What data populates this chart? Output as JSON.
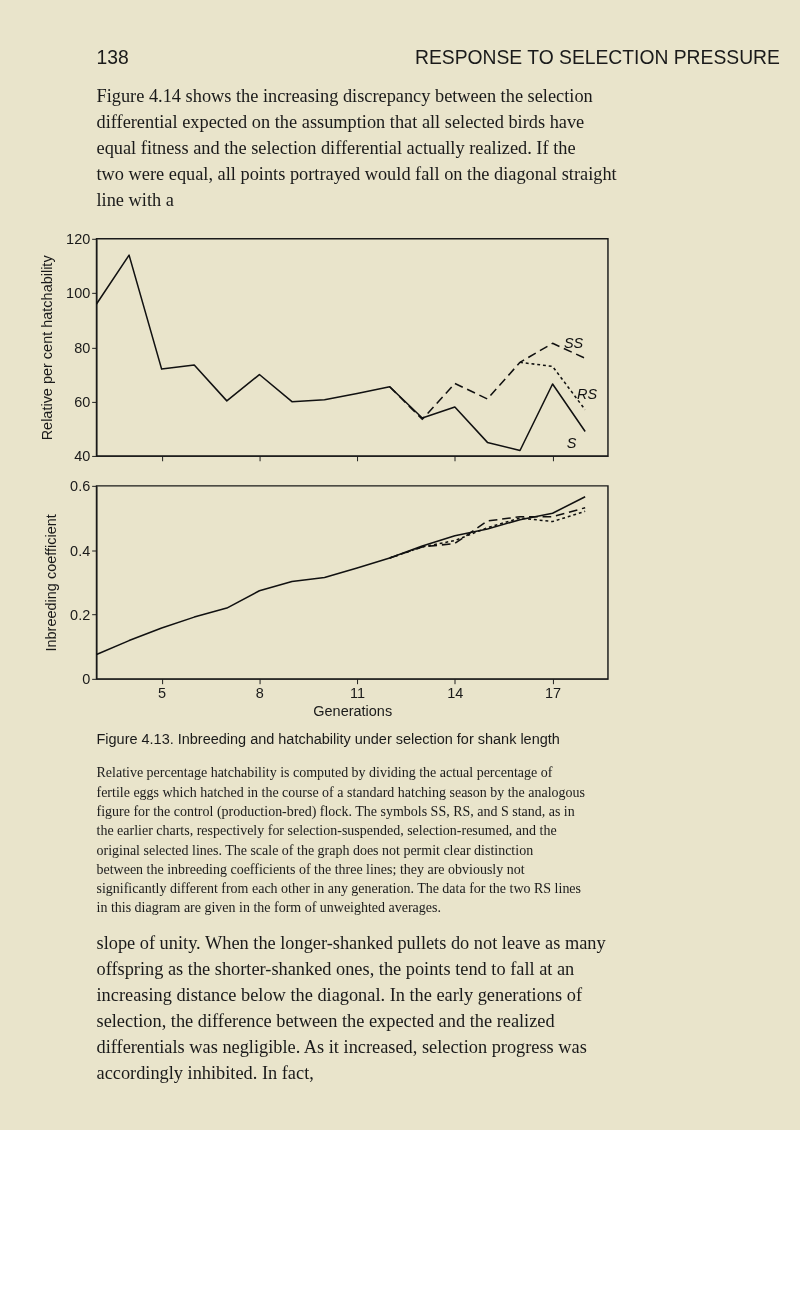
{
  "chart_data": [
    {
      "type": "line",
      "ylabel": "Relative per cent hatchability",
      "xlim": [
        3,
        18.7
      ],
      "xticks": [
        5,
        8,
        11,
        14,
        17
      ],
      "ylim": [
        40,
        120
      ],
      "yticks": [
        40,
        60,
        80,
        100,
        120
      ],
      "tick_labels": "y",
      "series": [
        {
          "name": "S",
          "color": "#111111",
          "line_style": "solid",
          "x": [
            3,
            4,
            5,
            6,
            7,
            8,
            9,
            10,
            11,
            12,
            13,
            14,
            15,
            16,
            17,
            18
          ],
          "values": [
            96,
            114,
            72,
            73.5,
            60.3,
            70,
            60,
            60.7,
            63,
            65.5,
            54,
            58,
            45,
            42,
            66.5,
            49
          ]
        },
        {
          "name": "SS",
          "color": "#111111",
          "line_style": "dashed",
          "x": [
            12,
            13,
            14,
            15,
            16,
            17,
            18
          ],
          "values": [
            65.5,
            53.5,
            66.7,
            61,
            74.5,
            81.5,
            76
          ]
        },
        {
          "name": "RS",
          "color": "#111111",
          "line_style": "dotted",
          "x": [
            16,
            17,
            18
          ],
          "values": [
            74.5,
            73,
            57
          ]
        }
      ],
      "annotations": [
        "138",
        "RESPONSE TO SELECTION PRESSURE",
        "Figure 4.14 shows the increasing discrepancy between the selection differential expected on the assumption that all selected birds have equal fitness and the selection differential actually realized. If the two were equal, all points portrayed would fall on the diagonal straight line with a"
      ]
    },
    {
      "type": "line",
      "xlabel": "Generations",
      "ylabel": "Inbreeding coefficient",
      "xlim": [
        3,
        18.7
      ],
      "xticks": [
        5,
        8,
        11,
        14,
        17
      ],
      "ylim": [
        0,
        0.6
      ],
      "yticks": [
        0,
        0.2,
        0.4,
        0.6
      ],
      "series": [
        {
          "color": "#111111",
          "line_style": "solid",
          "x": [
            3,
            4,
            5,
            6,
            7,
            8,
            9,
            10,
            11,
            12,
            13,
            14,
            15,
            16,
            17,
            18
          ],
          "values": [
            0.076,
            0.119,
            0.158,
            0.192,
            0.22,
            0.274,
            0.303,
            0.315,
            0.345,
            0.376,
            0.413,
            0.445,
            0.466,
            0.495,
            0.515,
            0.566
          ]
        },
        {
          "color": "#111111",
          "line_style": "dashed",
          "x": [
            12,
            13,
            14,
            15,
            16,
            17,
            18
          ],
          "values": [
            0.376,
            0.41,
            0.421,
            0.491,
            0.504,
            0.504,
            0.532
          ]
        },
        {
          "color": "#111111",
          "line_style": "dotted",
          "x": [
            12,
            13,
            14,
            15,
            16,
            17,
            18
          ],
          "values": [
            0.376,
            0.41,
            0.43,
            0.47,
            0.5,
            0.489,
            0.521
          ]
        }
      ],
      "annotations": [
        "Figure 4.13.  Inbreeding and hatchability under selection for shank length",
        "Relative percentage hatchability is computed by dividing the actual percentage of fertile eggs which hatched in the course of a standard hatching season by the analogous figure for the control (production-bred) flock. The symbols SS, RS, and S stand, as in the earlier charts, respectively for selection-suspended, selection-resumed, and the original selected lines. The scale of the graph does not permit clear distinction between the inbreeding coefficients of the three lines; they are obviously not significantly different from each other in any generation. The data for the two RS lines in this diagram are given in the form of unweighted averages.",
        "slope of unity. When the longer-shanked pullets do not leave as many offspring as the shorter-shanked ones, the points tend to fall at an increasing distance below the diagonal. In the early generations of selection, the difference between the expected and the realized differentials was negligible. As it increased, selection progress was accordingly inhibited. In fact,"
      ]
    }
  ]
}
